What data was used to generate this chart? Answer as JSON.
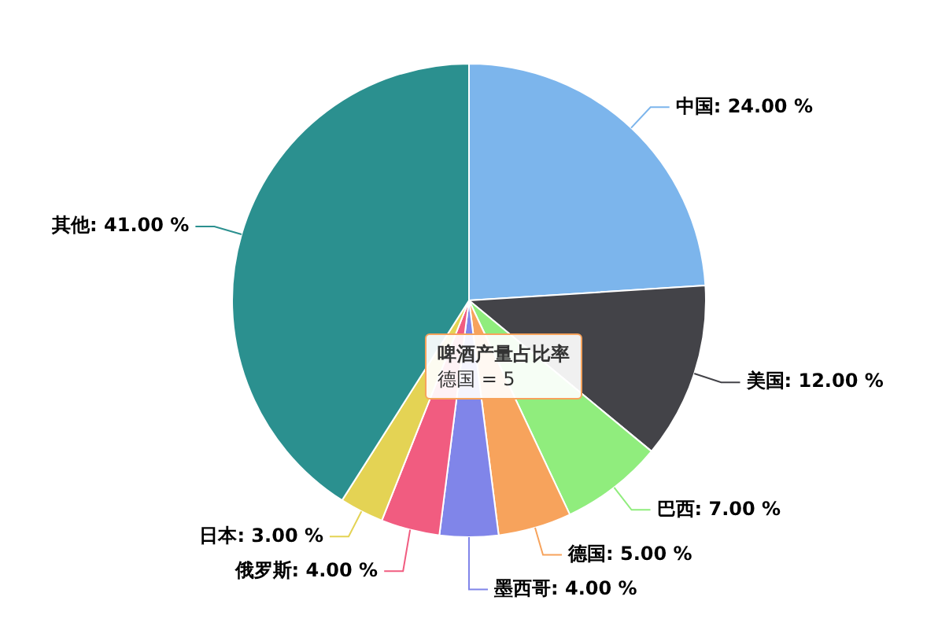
{
  "chart_data": {
    "type": "pie",
    "categories": [
      "中国",
      "美国",
      "巴西",
      "德国",
      "墨西哥",
      "俄罗斯",
      "日本",
      "其他"
    ],
    "values": [
      24,
      12,
      7,
      5,
      4,
      4,
      3,
      41
    ],
    "colors": [
      "#7cb5ec",
      "#434348",
      "#90ed7d",
      "#f7a35c",
      "#8085e9",
      "#f15c80",
      "#e4d354",
      "#2b908f"
    ],
    "value_labels": [
      "24.00 %",
      "12.00 %",
      "7.00 %",
      "5.00 %",
      "4.00 %",
      "4.00 %",
      "3.00 %",
      "41.00 %"
    ],
    "annotations": [
      "啤酒产量占比率",
      "德国 = 5"
    ],
    "legend": false
  }
}
